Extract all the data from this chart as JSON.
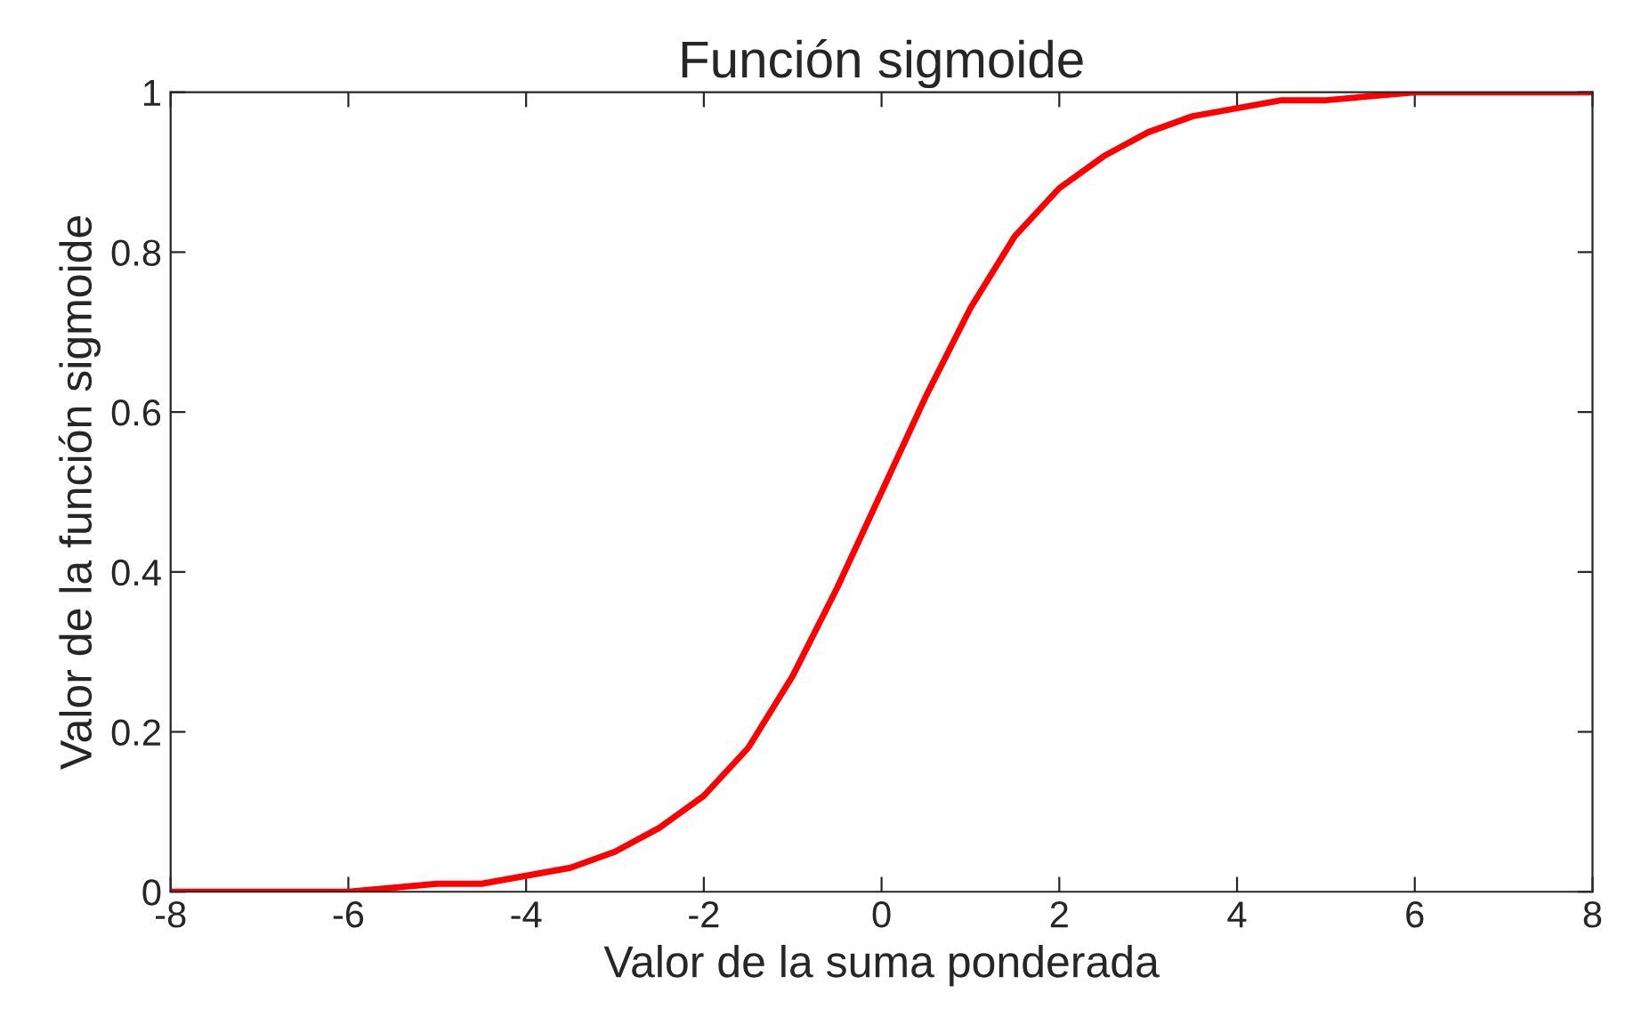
{
  "chart_data": {
    "type": "line",
    "title": "Función sigmoide",
    "xlabel": "Valor de la suma ponderada",
    "ylabel": "Valor de la función sigmoide",
    "x": [
      -8,
      -7,
      -6,
      -5,
      -4.5,
      -4,
      -3.5,
      -3,
      -2.5,
      -2,
      -1.5,
      -1,
      -0.5,
      0,
      0.5,
      1,
      1.5,
      2,
      2.5,
      3,
      3.5,
      4,
      4.5,
      5,
      6,
      7,
      8
    ],
    "series": [
      {
        "color": "#ff0000",
        "values": [
          0.0,
          0.0,
          0.0,
          0.01,
          0.01,
          0.02,
          0.03,
          0.05,
          0.08,
          0.12,
          0.18,
          0.27,
          0.38,
          0.5,
          0.62,
          0.73,
          0.82,
          0.88,
          0.92,
          0.95,
          0.97,
          0.98,
          0.99,
          0.99,
          1.0,
          1.0,
          1.0
        ]
      }
    ],
    "xlim": [
      -8,
      8
    ],
    "xticks": [
      -8,
      -6,
      -4,
      -2,
      0,
      2,
      4,
      6,
      8
    ],
    "ylim": [
      0,
      1
    ],
    "yticks": [
      0,
      0.2,
      0.4,
      0.6,
      0.8,
      1
    ],
    "marker": "none",
    "line_style": "solid"
  }
}
